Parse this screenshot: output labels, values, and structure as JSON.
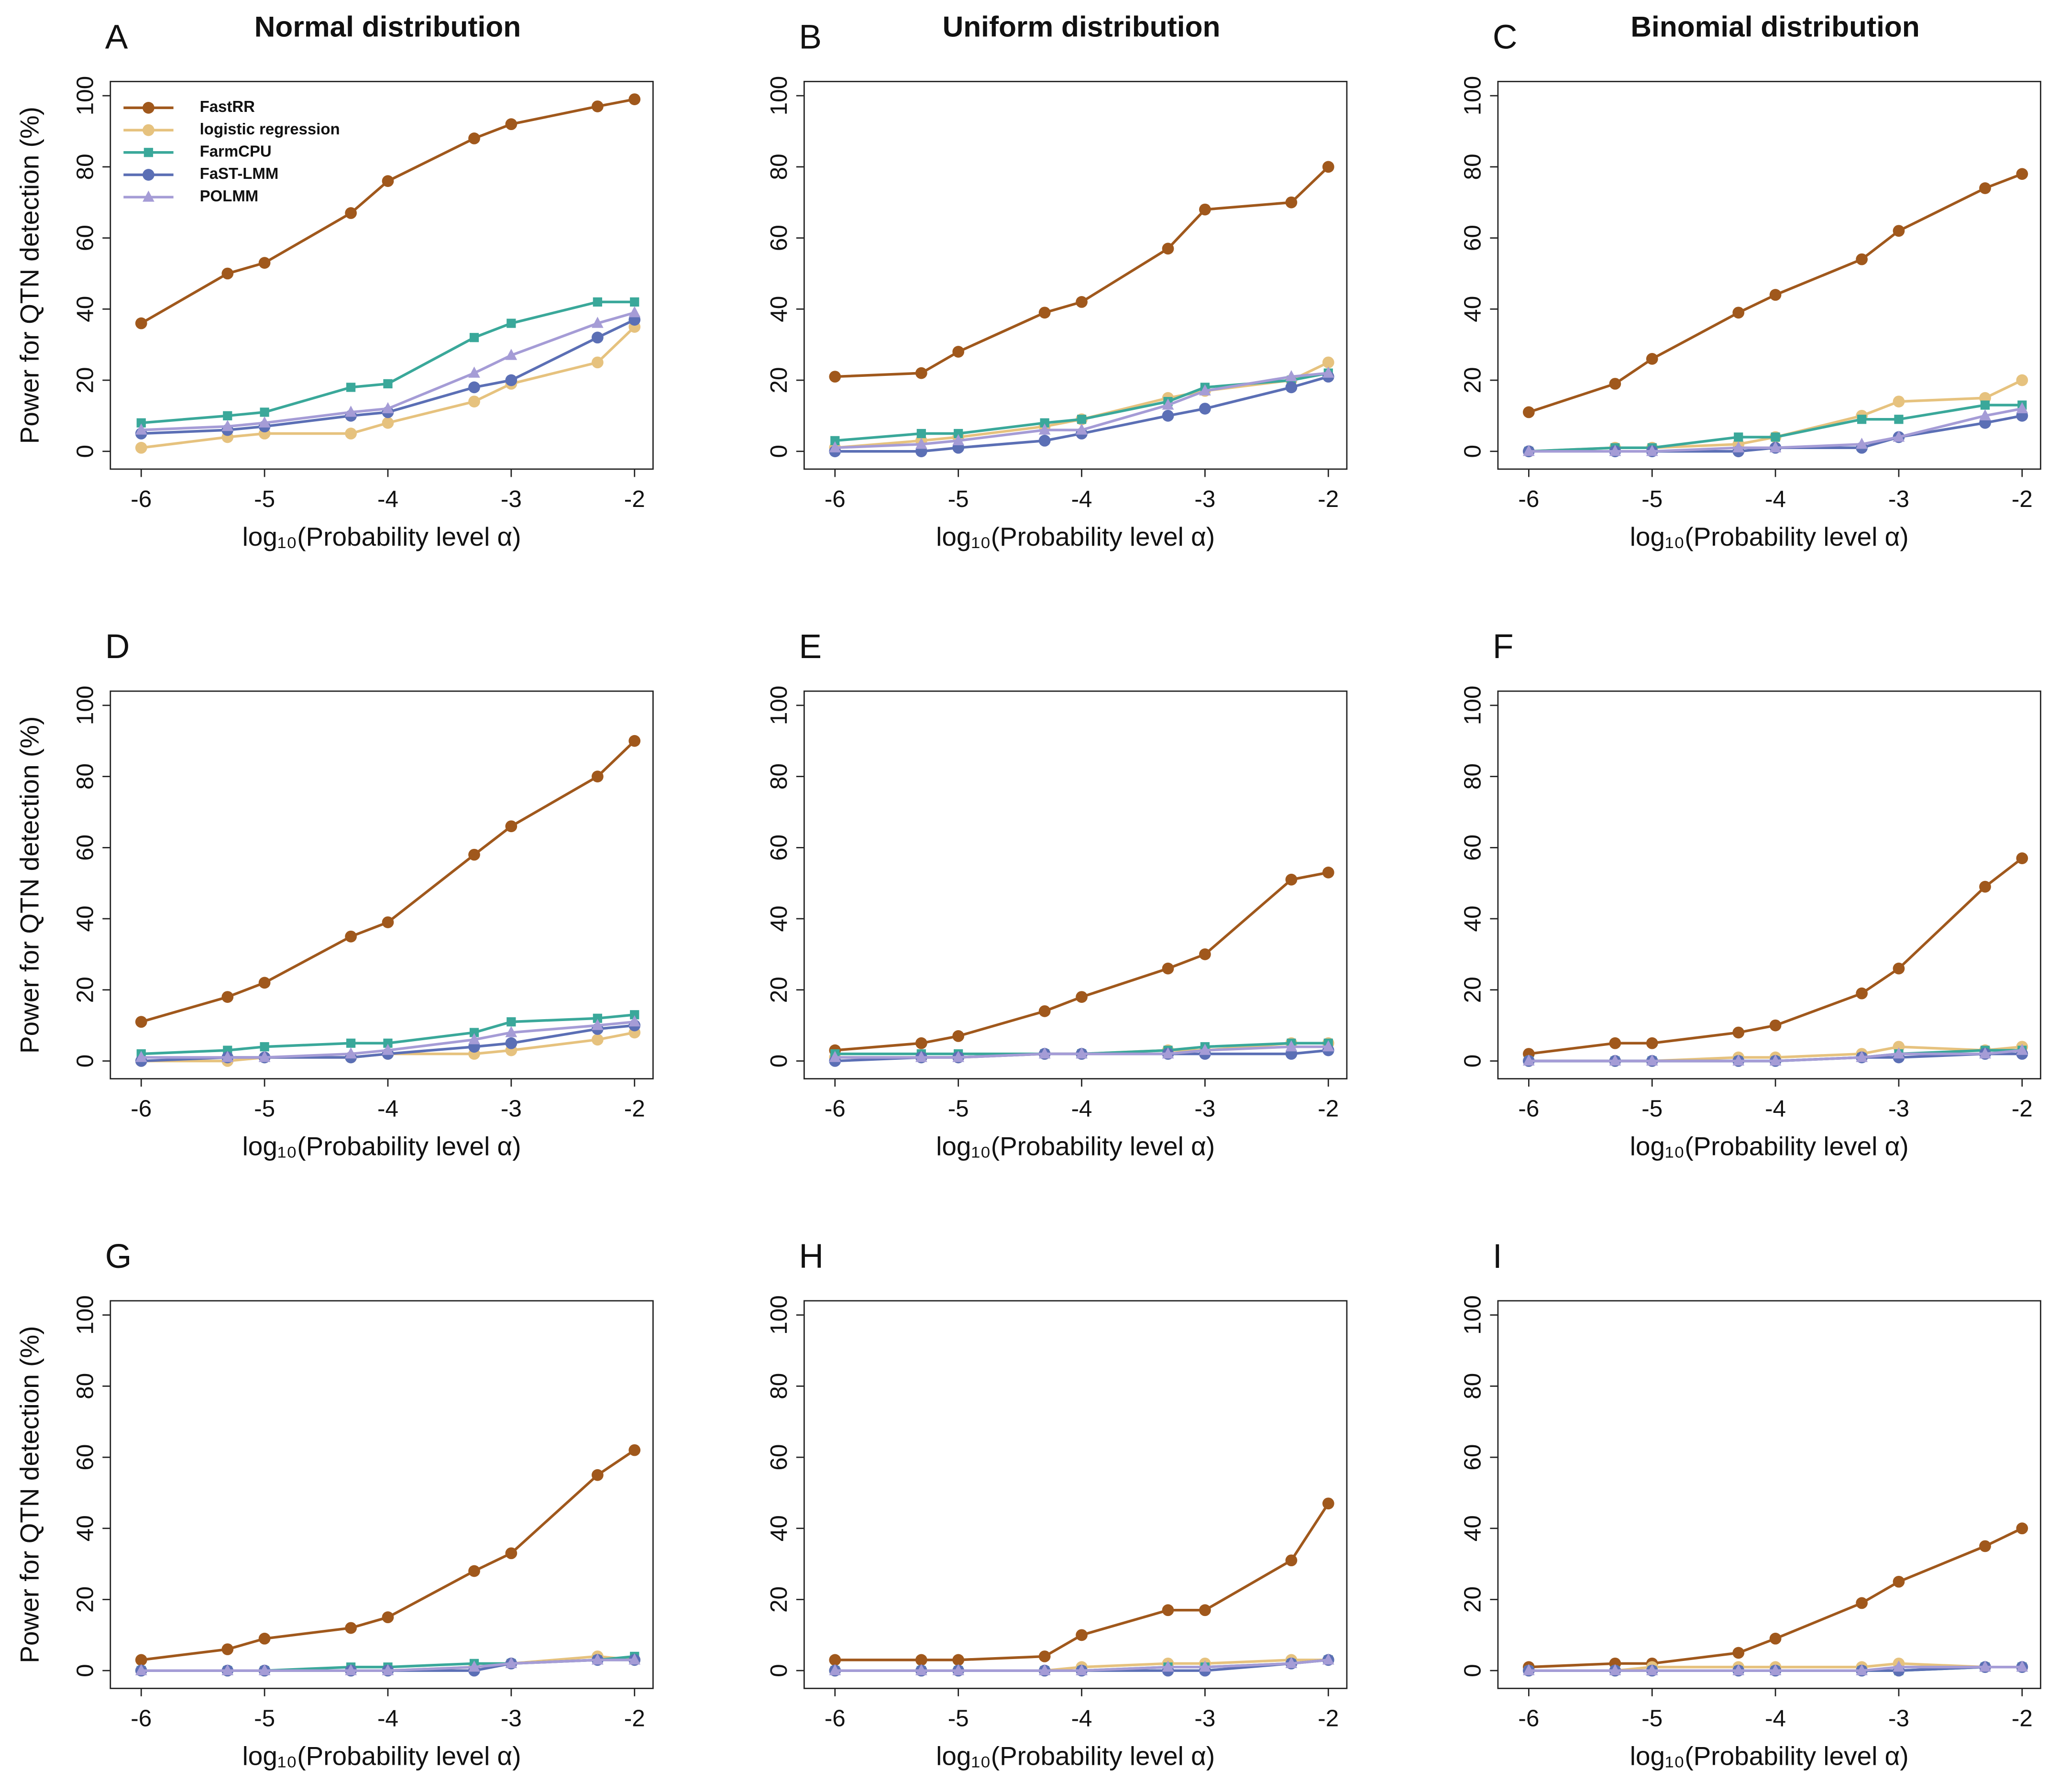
{
  "chart_data": [
    {
      "type": "line",
      "panel": "A",
      "title": "Normal distribution",
      "xlabel": "log₁₀(Probability level α)",
      "ylabel": "Power for QTN detection (%)",
      "legend": "upper left",
      "x": [
        -6,
        -5.3,
        -5,
        -4.3,
        -4,
        -3.3,
        -3,
        -2.3,
        -2
      ],
      "xlim": [
        -6.25,
        -1.85
      ],
      "xticks": [
        -6,
        -5,
        -4,
        -3,
        -2
      ],
      "ylim": [
        -5,
        104
      ],
      "yticks": [
        0,
        20,
        40,
        60,
        80,
        100
      ],
      "series": [
        {
          "name": "FastRR",
          "color": "#a0581c",
          "marker": "circle",
          "values": [
            36,
            50,
            53,
            67,
            76,
            88,
            92,
            97,
            99
          ]
        },
        {
          "name": "logistic regression",
          "color": "#e6c27e",
          "marker": "circle",
          "values": [
            1,
            4,
            5,
            5,
            8,
            14,
            19,
            25,
            35
          ]
        },
        {
          "name": "FarmCPU",
          "color": "#3aa89a",
          "marker": "square",
          "values": [
            8,
            10,
            11,
            18,
            19,
            32,
            36,
            42,
            42
          ]
        },
        {
          "name": "FaST-LMM",
          "color": "#5b6fb5",
          "marker": "circle",
          "values": [
            5,
            6,
            7,
            10,
            11,
            18,
            20,
            32,
            37
          ]
        },
        {
          "name": "POLMM",
          "color": "#a59cd6",
          "marker": "triangle",
          "values": [
            6,
            7,
            8,
            11,
            12,
            22,
            27,
            36,
            39
          ]
        }
      ]
    },
    {
      "type": "line",
      "panel": "B",
      "title": "Uniform distribution",
      "xlabel": "log₁₀(Probability level α)",
      "x": [
        -6,
        -5.3,
        -5,
        -4.3,
        -4,
        -3.3,
        -3,
        -2.3,
        -2
      ],
      "xlim": [
        -6.25,
        -1.85
      ],
      "xticks": [
        -6,
        -5,
        -4,
        -3,
        -2
      ],
      "ylim": [
        -5,
        104
      ],
      "yticks": [
        0,
        20,
        40,
        60,
        80,
        100
      ],
      "series": [
        {
          "values": [
            21,
            22,
            28,
            39,
            42,
            57,
            68,
            70,
            80
          ]
        },
        {
          "values": [
            1,
            3,
            4,
            7,
            9,
            15,
            17,
            20,
            25
          ]
        },
        {
          "values": [
            3,
            5,
            5,
            8,
            9,
            14,
            18,
            20,
            22
          ]
        },
        {
          "values": [
            0,
            0,
            1,
            3,
            5,
            10,
            12,
            18,
            21
          ]
        },
        {
          "values": [
            1,
            2,
            3,
            6,
            6,
            13,
            17,
            21,
            22
          ]
        }
      ]
    },
    {
      "type": "line",
      "panel": "C",
      "title": "Binomial distribution",
      "xlabel": "log₁₀(Probability level α)",
      "x": [
        -6,
        -5.3,
        -5,
        -4.3,
        -4,
        -3.3,
        -3,
        -2.3,
        -2
      ],
      "xlim": [
        -6.25,
        -1.85
      ],
      "xticks": [
        -6,
        -5,
        -4,
        -3,
        -2
      ],
      "ylim": [
        -5,
        104
      ],
      "yticks": [
        0,
        20,
        40,
        60,
        80,
        100
      ],
      "series": [
        {
          "values": [
            11,
            19,
            26,
            39,
            44,
            54,
            62,
            74,
            78
          ]
        },
        {
          "values": [
            0,
            1,
            1,
            2,
            4,
            10,
            14,
            15,
            20
          ]
        },
        {
          "values": [
            0,
            1,
            1,
            4,
            4,
            9,
            9,
            13,
            13
          ]
        },
        {
          "values": [
            0,
            0,
            0,
            0,
            1,
            1,
            4,
            8,
            10
          ]
        },
        {
          "values": [
            0,
            0,
            0,
            1,
            1,
            2,
            4,
            10,
            12
          ]
        }
      ]
    },
    {
      "type": "line",
      "panel": "D",
      "xlabel": "log₁₀(Probability level α)",
      "ylabel": "Power for QTN detection (%)",
      "x": [
        -6,
        -5.3,
        -5,
        -4.3,
        -4,
        -3.3,
        -3,
        -2.3,
        -2
      ],
      "xlim": [
        -6.25,
        -1.85
      ],
      "xticks": [
        -6,
        -5,
        -4,
        -3,
        -2
      ],
      "ylim": [
        -5,
        104
      ],
      "yticks": [
        0,
        20,
        40,
        60,
        80,
        100
      ],
      "series": [
        {
          "values": [
            11,
            18,
            22,
            35,
            39,
            58,
            66,
            80,
            90
          ]
        },
        {
          "values": [
            0,
            0,
            1,
            1,
            2,
            2,
            3,
            6,
            8
          ]
        },
        {
          "values": [
            2,
            3,
            4,
            5,
            5,
            8,
            11,
            12,
            13
          ]
        },
        {
          "values": [
            0,
            1,
            1,
            1,
            2,
            4,
            5,
            9,
            10
          ]
        },
        {
          "values": [
            1,
            1,
            1,
            2,
            3,
            6,
            8,
            10,
            11
          ]
        }
      ]
    },
    {
      "type": "line",
      "panel": "E",
      "xlabel": "log₁₀(Probability level α)",
      "x": [
        -6,
        -5.3,
        -5,
        -4.3,
        -4,
        -3.3,
        -3,
        -2.3,
        -2
      ],
      "xlim": [
        -6.25,
        -1.85
      ],
      "xticks": [
        -6,
        -5,
        -4,
        -3,
        -2
      ],
      "ylim": [
        -5,
        104
      ],
      "yticks": [
        0,
        20,
        40,
        60,
        80,
        100
      ],
      "series": [
        {
          "values": [
            3,
            5,
            7,
            14,
            18,
            26,
            30,
            51,
            53
          ]
        },
        {
          "values": [
            1,
            1,
            1,
            2,
            2,
            3,
            3,
            5,
            5
          ]
        },
        {
          "values": [
            2,
            2,
            2,
            2,
            2,
            3,
            4,
            5,
            5
          ]
        },
        {
          "values": [
            0,
            1,
            1,
            2,
            2,
            2,
            2,
            2,
            3
          ]
        },
        {
          "values": [
            1,
            1,
            1,
            2,
            2,
            2,
            3,
            4,
            4
          ]
        }
      ]
    },
    {
      "type": "line",
      "panel": "F",
      "xlabel": "log₁₀(Probability level α)",
      "x": [
        -6,
        -5.3,
        -5,
        -4.3,
        -4,
        -3.3,
        -3,
        -2.3,
        -2
      ],
      "xlim": [
        -6.25,
        -1.85
      ],
      "xticks": [
        -6,
        -5,
        -4,
        -3,
        -2
      ],
      "ylim": [
        -5,
        104
      ],
      "yticks": [
        0,
        20,
        40,
        60,
        80,
        100
      ],
      "series": [
        {
          "values": [
            2,
            5,
            5,
            8,
            10,
            19,
            26,
            49,
            57
          ]
        },
        {
          "values": [
            0,
            0,
            0,
            1,
            1,
            2,
            4,
            3,
            4
          ]
        },
        {
          "values": [
            0,
            0,
            0,
            0,
            0,
            1,
            2,
            3,
            3
          ]
        },
        {
          "values": [
            0,
            0,
            0,
            0,
            0,
            1,
            1,
            2,
            2
          ]
        },
        {
          "values": [
            0,
            0,
            0,
            0,
            0,
            1,
            2,
            2,
            3
          ]
        }
      ]
    },
    {
      "type": "line",
      "panel": "G",
      "xlabel": "log₁₀(Probability level α)",
      "ylabel": "Power for QTN detection (%)",
      "x": [
        -6,
        -5.3,
        -5,
        -4.3,
        -4,
        -3.3,
        -3,
        -2.3,
        -2
      ],
      "xlim": [
        -6.25,
        -1.85
      ],
      "xticks": [
        -6,
        -5,
        -4,
        -3,
        -2
      ],
      "ylim": [
        -5,
        104
      ],
      "yticks": [
        0,
        20,
        40,
        60,
        80,
        100
      ],
      "series": [
        {
          "values": [
            3,
            6,
            9,
            12,
            15,
            28,
            33,
            55,
            62
          ]
        },
        {
          "values": [
            0,
            0,
            0,
            0,
            0,
            1,
            2,
            4,
            3
          ]
        },
        {
          "values": [
            0,
            0,
            0,
            1,
            1,
            2,
            2,
            3,
            4
          ]
        },
        {
          "values": [
            0,
            0,
            0,
            0,
            0,
            0,
            2,
            3,
            3
          ]
        },
        {
          "values": [
            0,
            0,
            0,
            0,
            0,
            1,
            2,
            3,
            3
          ]
        }
      ]
    },
    {
      "type": "line",
      "panel": "H",
      "xlabel": "log₁₀(Probability level α)",
      "x": [
        -6,
        -5.3,
        -5,
        -4.3,
        -4,
        -3.3,
        -3,
        -2.3,
        -2
      ],
      "xlim": [
        -6.25,
        -1.85
      ],
      "xticks": [
        -6,
        -5,
        -4,
        -3,
        -2
      ],
      "ylim": [
        -5,
        104
      ],
      "yticks": [
        0,
        20,
        40,
        60,
        80,
        100
      ],
      "series": [
        {
          "values": [
            3,
            3,
            3,
            4,
            10,
            17,
            17,
            31,
            47
          ]
        },
        {
          "values": [
            0,
            0,
            0,
            0,
            1,
            2,
            2,
            3,
            3
          ]
        },
        {
          "values": [
            0,
            0,
            0,
            0,
            0,
            1,
            1,
            2,
            3
          ]
        },
        {
          "values": [
            0,
            0,
            0,
            0,
            0,
            0,
            0,
            2,
            3
          ]
        },
        {
          "values": [
            0,
            0,
            0,
            0,
            0,
            1,
            1,
            2,
            3
          ]
        }
      ]
    },
    {
      "type": "line",
      "panel": "I",
      "xlabel": "log₁₀(Probability level α)",
      "x": [
        -6,
        -5.3,
        -5,
        -4.3,
        -4,
        -3.3,
        -3,
        -2.3,
        -2
      ],
      "xlim": [
        -6.25,
        -1.85
      ],
      "xticks": [
        -6,
        -5,
        -4,
        -3,
        -2
      ],
      "ylim": [
        -5,
        104
      ],
      "yticks": [
        0,
        20,
        40,
        60,
        80,
        100
      ],
      "series": [
        {
          "values": [
            1,
            2,
            2,
            5,
            9,
            19,
            25,
            35,
            40
          ]
        },
        {
          "values": [
            0,
            0,
            1,
            1,
            1,
            1,
            2,
            1,
            1
          ]
        },
        {
          "values": [
            0,
            0,
            0,
            0,
            0,
            0,
            0,
            1,
            1
          ]
        },
        {
          "values": [
            0,
            0,
            0,
            0,
            0,
            0,
            0,
            1,
            1
          ]
        },
        {
          "values": [
            0,
            0,
            0,
            0,
            0,
            0,
            1,
            1,
            1
          ]
        }
      ]
    }
  ]
}
